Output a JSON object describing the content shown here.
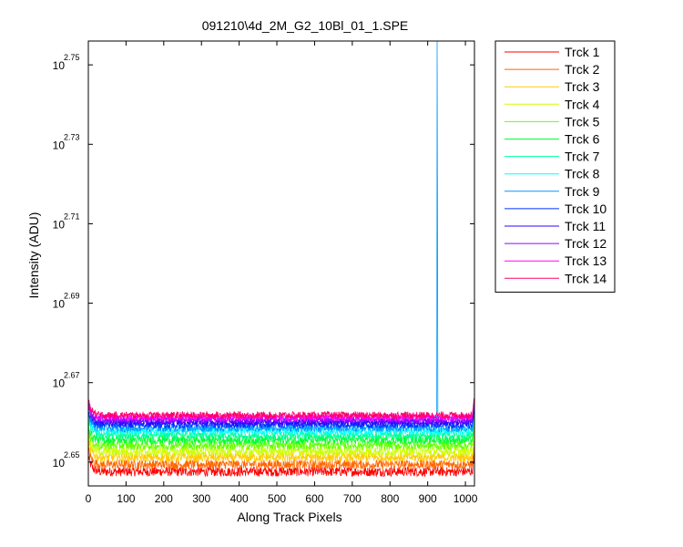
{
  "chart_data": {
    "type": "line",
    "title": "091210\\4d_2M_G2_10Bl_01_1.SPE",
    "xlabel": "Along Track Pixels",
    "ylabel": "Intensity (ADU)",
    "xlim": [
      0,
      1024
    ],
    "ylim_log10": [
      2.644,
      2.756
    ],
    "y_scale": "log",
    "grid": false,
    "legend_position": "outside-right",
    "x_ticks": [
      0,
      100,
      200,
      300,
      400,
      500,
      600,
      700,
      800,
      900,
      1000
    ],
    "x_tick_labels": [
      "0",
      "100",
      "200",
      "300",
      "400",
      "500",
      "600",
      "700",
      "800",
      "900",
      "1000"
    ],
    "y_ticks_log10": [
      2.65,
      2.67,
      2.69,
      2.71,
      2.73,
      2.75
    ],
    "y_tick_base": "10",
    "y_tick_exponents": [
      "2.65",
      "2.67",
      "2.69",
      "2.71",
      "2.73",
      "2.75"
    ],
    "series": [
      {
        "name": "Trck 1",
        "color": "#ff0000",
        "level_log10": 2.6476,
        "noise_log10": 0.0012
      },
      {
        "name": "Trck 2",
        "color": "#ff6600",
        "level_log10": 2.6494,
        "noise_log10": 0.0012
      },
      {
        "name": "Trck 3",
        "color": "#ffcc00",
        "level_log10": 2.6512,
        "noise_log10": 0.0012
      },
      {
        "name": "Trck 4",
        "color": "#ccff00",
        "level_log10": 2.6527,
        "noise_log10": 0.0012
      },
      {
        "name": "Trck 5",
        "color": "#66ff00",
        "level_log10": 2.6542,
        "noise_log10": 0.0011
      },
      {
        "name": "Trck 6",
        "color": "#00ff33",
        "level_log10": 2.6556,
        "noise_log10": 0.0011
      },
      {
        "name": "Trck 7",
        "color": "#00ff99",
        "level_log10": 2.6568,
        "noise_log10": 0.001
      },
      {
        "name": "Trck 8",
        "color": "#00ffff",
        "level_log10": 2.6578,
        "noise_log10": 0.001
      },
      {
        "name": "Trck 9",
        "color": "#0099ff",
        "level_log10": 2.6586,
        "noise_log10": 0.001,
        "spike_x": 925,
        "spike_log10": 2.756
      },
      {
        "name": "Trck 10",
        "color": "#0033ff",
        "level_log10": 2.6594,
        "noise_log10": 0.0009
      },
      {
        "name": "Trck 11",
        "color": "#3300ff",
        "level_log10": 2.6601,
        "noise_log10": 0.0009
      },
      {
        "name": "Trck 12",
        "color": "#9900ff",
        "level_log10": 2.6607,
        "noise_log10": 0.0009
      },
      {
        "name": "Trck 13",
        "color": "#ff00ff",
        "level_log10": 2.6613,
        "noise_log10": 0.0009
      },
      {
        "name": "Trck 14",
        "color": "#ff0066",
        "level_log10": 2.6618,
        "noise_log10": 0.0009
      }
    ]
  }
}
